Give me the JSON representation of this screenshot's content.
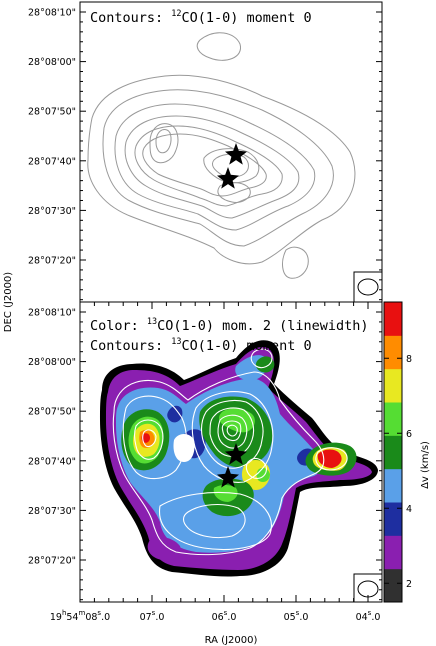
{
  "chart_data": [
    {
      "type": "contour",
      "panel": "top",
      "title_prefix": "Contours: ",
      "title_sup": "12",
      "title_suffix": "CO(1-0) moment 0",
      "ylabel": "DEC (J2000)",
      "y_tick_labels": [
        "28°08'10\"",
        "28°08'00\"",
        "28°07'50\"",
        "28°07'40\"",
        "28°07'30\"",
        "28°07'20\""
      ],
      "contour_color": "#999999",
      "beam": "ellipse (lower right)",
      "stars": 2
    },
    {
      "type": "heatmap",
      "panel": "bottom",
      "title1_prefix": "Color: ",
      "title1_sup": "13",
      "title1_suffix": "CO(1-0) mom. 2 (linewidth)",
      "title2_prefix": "Contours: ",
      "title2_sup": "13",
      "title2_suffix": "CO(1-0) moment 0",
      "xlabel": "RA (J2000)",
      "ylabel": "DEC (J2000)",
      "x_tick_labels": [
        {
          "h": "19",
          "h_unit": "h",
          "m": "54",
          "m_unit": "m",
          "s": "08",
          "s_unit": "s",
          "frac": ".0"
        },
        {
          "s": "07",
          "s_unit": "s",
          "frac": ".0"
        },
        {
          "s": "06",
          "s_unit": "s",
          "frac": ".0"
        },
        {
          "s": "05",
          "s_unit": "s",
          "frac": ".0"
        },
        {
          "s": "04",
          "s_unit": "s",
          "frac": ".0"
        }
      ],
      "y_tick_labels": [
        "28°08'10\"",
        "28°08'00\"",
        "28°07'50\"",
        "28°07'40\"",
        "28°07'30\"",
        "28°07'20\""
      ],
      "colorbar": {
        "label": "Δv (km/s)",
        "range": [
          1.5,
          9.5
        ],
        "tick_values": [
          2,
          4,
          6,
          8
        ],
        "tick_labels": [
          "2",
          "4",
          "6",
          "8"
        ],
        "colors": [
          "#303030",
          "#8a1fb0",
          "#1e2ea0",
          "#5aa0e8",
          "#1a8a1a",
          "#55dd33",
          "#e8e821",
          "#ff8c00",
          "#e81010"
        ],
        "color_order": "bottom-to-top"
      },
      "contour_color": "#ffffff",
      "beam": "ellipse (lower right)",
      "stars": 2
    }
  ]
}
